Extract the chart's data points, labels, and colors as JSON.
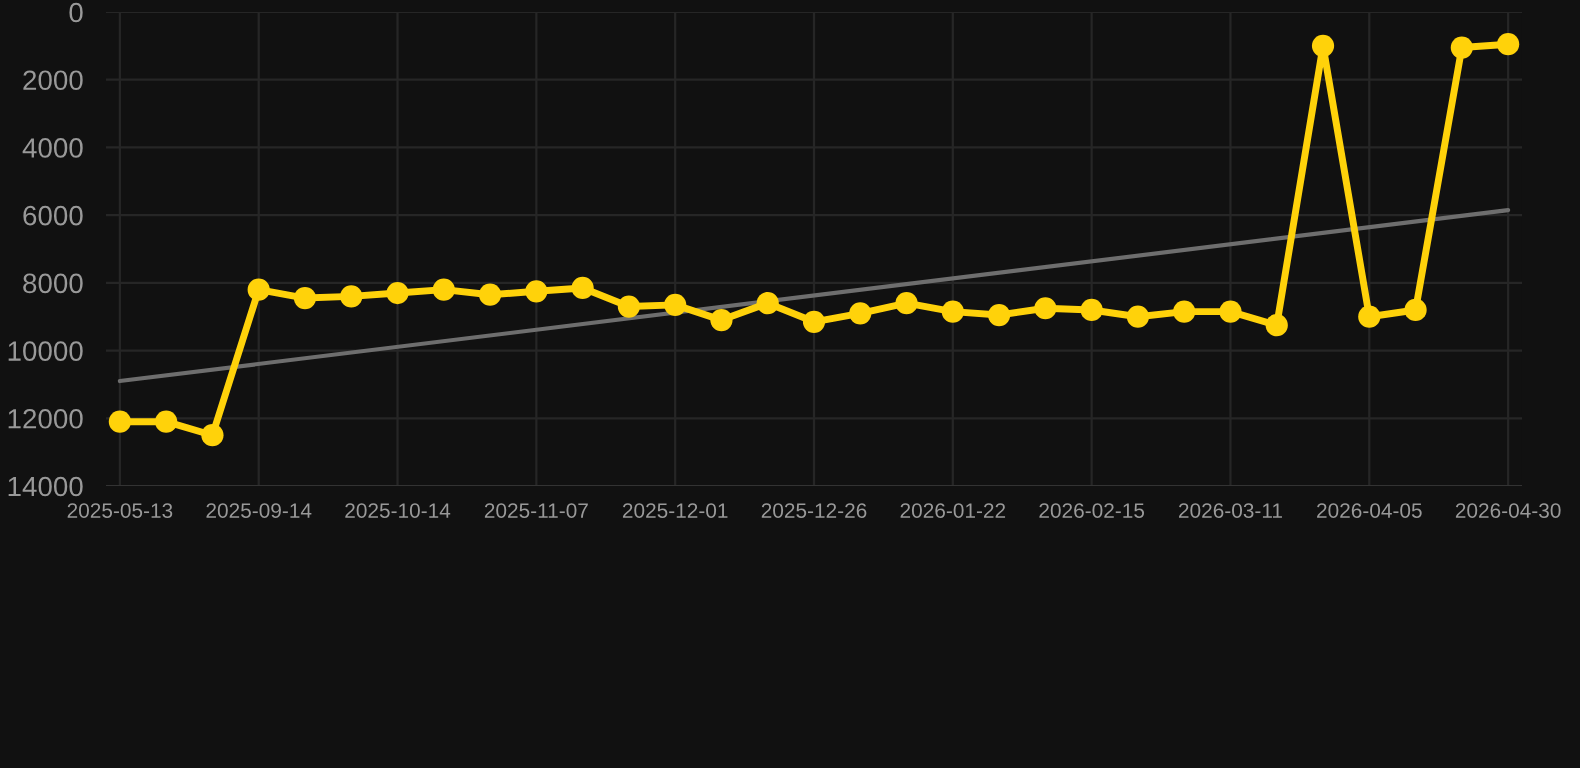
{
  "chart_data": {
    "type": "line",
    "categories": [
      "2025-05-13",
      null,
      null,
      "2025-09-14",
      null,
      null,
      "2025-10-14",
      null,
      null,
      "2025-11-07",
      null,
      null,
      "2025-12-01",
      null,
      null,
      "2025-12-26",
      null,
      null,
      "2026-01-22",
      null,
      null,
      "2026-02-15",
      null,
      null,
      "2026-03-11",
      null,
      null,
      "2026-04-05",
      null,
      null,
      "2026-04-30"
    ],
    "series": [
      {
        "color": "#ffd20a",
        "marker": "circle",
        "values": [
          12100,
          12100,
          12500,
          8200,
          8450,
          8400,
          8300,
          8200,
          8350,
          8250,
          8150,
          8700,
          8650,
          9100,
          8600,
          9150,
          8900,
          8600,
          8850,
          8950,
          8750,
          8800,
          9000,
          8850,
          8850,
          9250,
          1000,
          9000,
          8800,
          1050,
          950
        ]
      },
      {
        "type": "line",
        "color": "#6e6e6e",
        "marker": "none",
        "values": [
          10900,
          null,
          null,
          null,
          null,
          null,
          null,
          null,
          null,
          null,
          null,
          null,
          null,
          null,
          null,
          null,
          null,
          null,
          null,
          null,
          null,
          null,
          null,
          null,
          null,
          null,
          null,
          null,
          null,
          null,
          5850
        ]
      }
    ],
    "ylim": [
      14000,
      0
    ],
    "yticks": [
      0,
      2000,
      4000,
      6000,
      8000,
      10000,
      12000,
      14000
    ],
    "grid": true
  }
}
